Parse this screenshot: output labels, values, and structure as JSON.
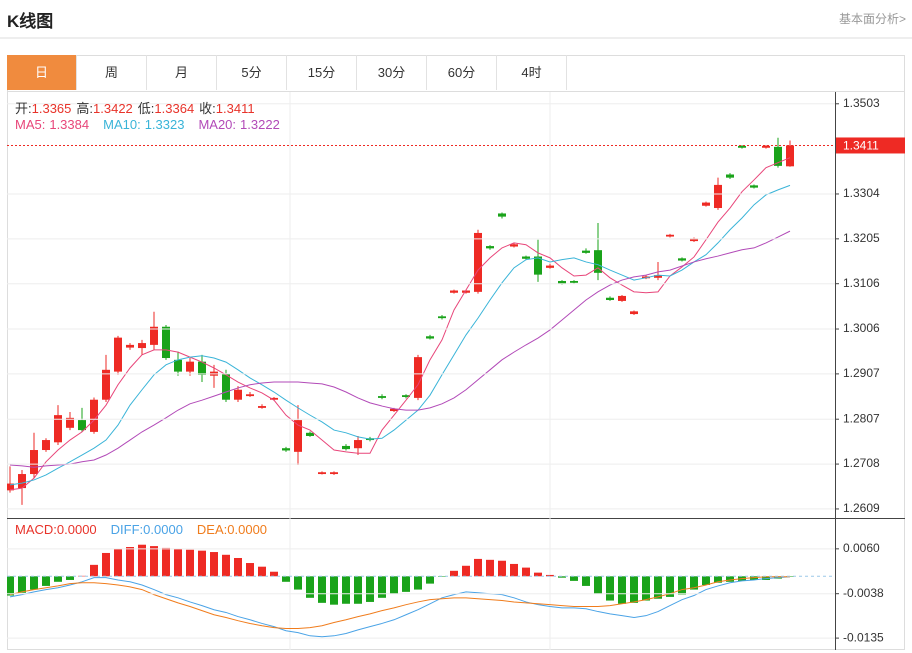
{
  "header": {
    "title": "K线图",
    "link": "基本面分析>"
  },
  "tabs": [
    "日",
    "周",
    "月",
    "5分",
    "15分",
    "30分",
    "60分",
    "4时"
  ],
  "active_tab": 0,
  "chart_data": [
    {
      "type": "candlestick",
      "quote": [
        {
          "label": "开:",
          "value": 1.3365
        },
        {
          "label": "高:",
          "value": 1.3422
        },
        {
          "label": "低:",
          "value": 1.3364
        },
        {
          "label": "收:",
          "value": 1.3411
        }
      ],
      "up_color": "#ee2a24",
      "down_color": "#1aa31a",
      "ylim": [
        1.2589,
        1.3529
      ],
      "yticks": [
        1.3503,
        1.3304,
        1.3205,
        1.3106,
        1.3006,
        1.2907,
        1.2807,
        1.2708,
        1.2609
      ],
      "grid": true,
      "last_price": 1.3411,
      "open": [
        1.265,
        1.2655,
        1.2686,
        1.2739,
        1.2756,
        1.2788,
        1.2805,
        1.2779,
        1.285,
        1.2912,
        1.2965,
        1.2964,
        1.2971,
        1.3011,
        1.2938,
        1.2912,
        1.2934,
        1.2903,
        1.2907,
        1.285,
        1.2858,
        1.2832,
        1.285,
        1.2743,
        1.2735,
        1.2777,
        1.2686,
        1.2686,
        1.2748,
        1.2743,
        1.2765,
        1.2858,
        1.2825,
        1.286,
        1.2854,
        1.299,
        1.3034,
        1.3086,
        1.3086,
        1.3088,
        1.3189,
        1.3261,
        1.3188,
        1.3166,
        1.3166,
        1.3141,
        1.3112,
        1.3112,
        1.3179,
        1.318,
        1.3075,
        1.3068,
        1.3039,
        1.3118,
        1.3119,
        1.321,
        1.3162,
        1.32,
        1.3278,
        1.3273,
        1.3347,
        1.341,
        1.3323,
        1.3406,
        1.3408,
        1.3365
      ],
      "high": [
        1.2703,
        1.2695,
        1.2777,
        1.2765,
        1.2838,
        1.2823,
        1.2832,
        1.2855,
        1.2949,
        1.2991,
        1.2975,
        1.2982,
        1.3044,
        1.3015,
        1.2956,
        1.2942,
        1.2949,
        1.2927,
        1.2916,
        1.288,
        1.2867,
        1.284,
        1.2856,
        1.2746,
        1.2838,
        1.278,
        1.2692,
        1.2692,
        1.2752,
        1.277,
        1.2768,
        1.2862,
        1.2832,
        1.2862,
        1.2949,
        1.2993,
        1.3037,
        1.3093,
        1.3093,
        1.3225,
        1.3191,
        1.3263,
        1.3195,
        1.3168,
        1.3203,
        1.315,
        1.3114,
        1.3114,
        1.3184,
        1.324,
        1.3078,
        1.3081,
        1.3047,
        1.3124,
        1.3154,
        1.3216,
        1.3164,
        1.3208,
        1.3287,
        1.334,
        1.335,
        1.3412,
        1.3325,
        1.3412,
        1.3428,
        1.3422
      ],
      "low": [
        1.2645,
        1.2618,
        1.2677,
        1.2735,
        1.275,
        1.2783,
        1.2779,
        1.2775,
        1.2845,
        1.2905,
        1.296,
        1.2949,
        1.296,
        1.2938,
        1.2903,
        1.2903,
        1.2889,
        1.2876,
        1.2845,
        1.2845,
        1.2856,
        1.283,
        1.2848,
        1.2735,
        1.2706,
        1.2768,
        1.2685,
        1.2684,
        1.2738,
        1.2728,
        1.2758,
        1.2851,
        1.2823,
        1.2853,
        1.2849,
        1.2983,
        1.3027,
        1.3084,
        1.3084,
        1.3084,
        1.3181,
        1.325,
        1.3186,
        1.3158,
        1.311,
        1.3139,
        1.3104,
        1.3106,
        1.3172,
        1.3114,
        1.3068,
        1.3066,
        1.3037,
        1.3116,
        1.3114,
        1.3208,
        1.3155,
        1.3198,
        1.3276,
        1.3269,
        1.3337,
        1.3404,
        1.3316,
        1.3404,
        1.3362,
        1.3364
      ],
      "close": [
        1.2665,
        1.2686,
        1.2739,
        1.2761,
        1.2816,
        1.281,
        1.2783,
        1.285,
        1.2916,
        1.2987,
        1.2971,
        1.2975,
        1.3011,
        1.2942,
        1.2912,
        1.2934,
        1.2905,
        1.2912,
        1.285,
        1.2872,
        1.2862,
        1.2836,
        1.2854,
        1.2738,
        1.2805,
        1.277,
        1.269,
        1.269,
        1.2741,
        1.2761,
        1.2761,
        1.2854,
        1.283,
        1.2856,
        1.2944,
        1.2985,
        1.303,
        1.3091,
        1.3091,
        1.3218,
        1.3184,
        1.3254,
        1.3193,
        1.3161,
        1.3126,
        1.3146,
        1.3106,
        1.3108,
        1.3174,
        1.313,
        1.307,
        1.3079,
        1.3045,
        1.3122,
        1.3125,
        1.3214,
        1.3157,
        1.3206,
        1.3285,
        1.3324,
        1.334,
        1.3406,
        1.3318,
        1.341,
        1.3366,
        1.3411
      ],
      "series": [
        {
          "name": "MA5:",
          "color": "#e8467a",
          "last": 1.3384,
          "values": [
            1.2651,
            1.2655,
            1.2677,
            1.2713,
            1.2739,
            1.2761,
            1.2779,
            1.2805,
            1.2838,
            1.2883,
            1.292,
            1.2949,
            1.296,
            1.296,
            1.2955,
            1.2944,
            1.2933,
            1.292,
            1.2905,
            1.2889,
            1.2876,
            1.2865,
            1.2849,
            1.2816,
            1.2794,
            1.2783,
            1.2761,
            1.2739,
            1.2735,
            1.2732,
            1.2732,
            1.2783,
            1.2816,
            1.2849,
            1.2883,
            1.2938,
            1.2982,
            1.3048,
            1.3092,
            1.3136,
            1.3163,
            1.3185,
            1.3196,
            1.3192,
            1.3174,
            1.3163,
            1.3141,
            1.3123,
            1.3125,
            1.3141,
            1.3119,
            1.3103,
            1.3088,
            1.3086,
            1.3088,
            1.3123,
            1.3143,
            1.3165,
            1.3203,
            1.3242,
            1.3273,
            1.3309,
            1.3335,
            1.3362,
            1.3373,
            1.3384
          ]
        },
        {
          "name": "MA10:",
          "color": "#3ab4d8",
          "last": 1.3323,
          "values": [
            1.2662,
            1.2666,
            1.2673,
            1.2684,
            1.2699,
            1.2713,
            1.2728,
            1.2743,
            1.2761,
            1.2794,
            1.2838,
            1.2872,
            1.2905,
            1.2927,
            1.2938,
            1.2944,
            1.2947,
            1.2942,
            1.2933,
            1.2916,
            1.2898,
            1.2883,
            1.2867,
            1.2849,
            1.2832,
            1.2816,
            1.2801,
            1.2783,
            1.2777,
            1.2768,
            1.2763,
            1.2765,
            1.2783,
            1.2805,
            1.2827,
            1.286,
            1.2905,
            1.2949,
            1.2993,
            1.303,
            1.307,
            1.3108,
            1.3141,
            1.3159,
            1.3163,
            1.3154,
            1.3159,
            1.3163,
            1.3154,
            1.3148,
            1.3136,
            1.3125,
            1.3114,
            1.3119,
            1.3125,
            1.3123,
            1.3136,
            1.3154,
            1.317,
            1.3196,
            1.3225,
            1.3251,
            1.328,
            1.3302,
            1.3313,
            1.3323
          ]
        },
        {
          "name": "MA20:",
          "color": "#b24ab8",
          "last": 1.3222,
          "values": [
            1.2706,
            1.2704,
            1.2701,
            1.2704,
            1.2706,
            1.2708,
            1.2713,
            1.2717,
            1.2728,
            1.2743,
            1.2761,
            1.2779,
            1.2794,
            1.281,
            1.2827,
            1.2841,
            1.2849,
            1.2858,
            1.2867,
            1.2876,
            1.2883,
            1.2887,
            1.2889,
            1.2889,
            1.2889,
            1.2887,
            1.2885,
            1.2878,
            1.2867,
            1.2854,
            1.2843,
            1.2836,
            1.283,
            1.2827,
            1.2827,
            1.2832,
            1.2841,
            1.2854,
            1.2872,
            1.2894,
            1.2916,
            1.2938,
            1.2955,
            1.2971,
            1.2986,
            1.3004,
            1.3026,
            1.3048,
            1.307,
            1.3088,
            1.3103,
            1.3114,
            1.3121,
            1.3125,
            1.3132,
            1.3136,
            1.3145,
            1.3154,
            1.3161,
            1.3167,
            1.3174,
            1.3181,
            1.3185,
            1.3196,
            1.3209,
            1.3222
          ]
        }
      ]
    },
    {
      "type": "macd",
      "legend": {
        "name": "MACD:",
        "value": {
          "value": 0,
          "label": "0.0000"
        },
        "color": "#e8332a"
      },
      "up_color": "#ee2a24",
      "down_color": "#1aa31a",
      "ylim": [
        -0.0161,
        0.0123
      ],
      "yticks": [
        {
          "value": 0.006,
          "label": "0.0060"
        },
        -0.0038,
        -0.0135
      ],
      "values": [
        -0.0042,
        -0.0036,
        -0.0029,
        -0.0021,
        -0.0012,
        -0.0008,
        0.0001,
        0.0025,
        0.0051,
        0.006,
        0.0064,
        0.0069,
        0.0066,
        0.0062,
        0.006,
        0.0058,
        0.0056,
        0.0053,
        0.0047,
        0.004,
        0.0029,
        0.0021,
        0.001,
        -0.0012,
        -0.0029,
        -0.0047,
        -0.0058,
        -0.0062,
        -0.006,
        -0.006,
        -0.0056,
        -0.0047,
        -0.0038,
        -0.0034,
        -0.0029,
        -0.0016,
        -0.0001,
        0.0012,
        0.0023,
        0.0038,
        0.0036,
        0.0034,
        0.0027,
        0.0019,
        0.0008,
        0.0003,
        -0.0003,
        -0.001,
        -0.0021,
        -0.0038,
        -0.0053,
        -0.006,
        -0.0058,
        -0.0053,
        -0.0049,
        -0.0045,
        -0.004,
        -0.0029,
        -0.0019,
        -0.0014,
        -0.0012,
        -0.001,
        -0.0008,
        -0.0008,
        -0.0005,
        -0.0001
      ],
      "series": [
        {
          "name": "DIFF:",
          "color": "#4aa3e6",
          "last": {
            "value": 0,
            "label": "0.0000"
          },
          "values": [
            -0.0045,
            -0.004,
            -0.0034,
            -0.0029,
            -0.0025,
            -0.0019,
            -0.0012,
            -0.0003,
            -0.0003,
            -0.0008,
            -0.0012,
            -0.0019,
            -0.0029,
            -0.004,
            -0.0047,
            -0.0056,
            -0.0064,
            -0.0073,
            -0.0079,
            -0.0088,
            -0.0095,
            -0.0103,
            -0.011,
            -0.0119,
            -0.0123,
            -0.013,
            -0.0132,
            -0.013,
            -0.0125,
            -0.0117,
            -0.011,
            -0.0103,
            -0.0095,
            -0.0084,
            -0.0073,
            -0.006,
            -0.0047,
            -0.004,
            -0.0034,
            -0.0036,
            -0.0038,
            -0.004,
            -0.0047,
            -0.0056,
            -0.0062,
            -0.0066,
            -0.0069,
            -0.0069,
            -0.0071,
            -0.0077,
            -0.0082,
            -0.0086,
            -0.009,
            -0.0086,
            -0.0077,
            -0.0064,
            -0.0051,
            -0.0042,
            -0.0029,
            -0.0021,
            -0.0014,
            -0.001,
            -0.0008,
            -0.0005,
            -0.0003,
            -0.0001
          ]
        },
        {
          "name": "DEA:",
          "color": "#f07c1c",
          "last": {
            "value": 0,
            "label": "0.0000"
          },
          "values": [
            -0.004,
            -0.0034,
            -0.0029,
            -0.0025,
            -0.0021,
            -0.0016,
            -0.0014,
            -0.0014,
            -0.0016,
            -0.0019,
            -0.0023,
            -0.0029,
            -0.004,
            -0.0049,
            -0.0058,
            -0.0066,
            -0.0075,
            -0.0084,
            -0.009,
            -0.0097,
            -0.0103,
            -0.0108,
            -0.0112,
            -0.0114,
            -0.0114,
            -0.0112,
            -0.0108,
            -0.0101,
            -0.0095,
            -0.0088,
            -0.0082,
            -0.0075,
            -0.0069,
            -0.0062,
            -0.0056,
            -0.0051,
            -0.0049,
            -0.0047,
            -0.0047,
            -0.0049,
            -0.0051,
            -0.0053,
            -0.0056,
            -0.0058,
            -0.006,
            -0.0062,
            -0.0064,
            -0.0066,
            -0.0066,
            -0.0066,
            -0.0064,
            -0.006,
            -0.0056,
            -0.0051,
            -0.0045,
            -0.0038,
            -0.0029,
            -0.0025,
            -0.0019,
            -0.0012,
            -0.0008,
            -0.0005,
            -0.0003,
            -0.0001,
            -0.0001,
            -0.0001
          ]
        }
      ]
    }
  ]
}
